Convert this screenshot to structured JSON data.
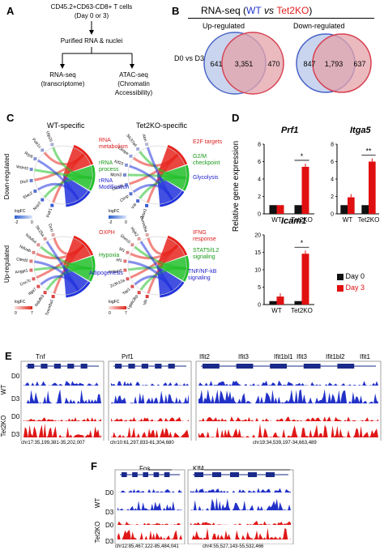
{
  "panel_labels": {
    "a": "A",
    "b": "B",
    "c": "C",
    "d": "D",
    "e": "E",
    "f": "F"
  },
  "panel_a": {
    "cells_line1": "CD45.2+CD63-CD8+  T cells",
    "cells_line2": "(Day 0 or 3)",
    "purified": "Purified RNA & nuclei",
    "rnaseq": "RNA-seq",
    "rnaseq_sub": "(transcriptome)",
    "atac": "ATAC-seq",
    "atac_sub1": "(Chromatin",
    "atac_sub2": "Accessibility)"
  },
  "panel_b": {
    "title_prefix": "RNA-seq (",
    "title_wt": "WT",
    "title_vs": " vs ",
    "title_ko": "Tet2KO",
    "title_suffix": ")",
    "up_label": "Up-regulated",
    "down_label": "Down-regulated",
    "row_label": "D0 vs D3",
    "up_counts": [
      "641",
      "3,351",
      "470"
    ],
    "down_counts": [
      "847",
      "1,793",
      "637"
    ],
    "colors": {
      "wt": "#2233cc",
      "ko": "#e02020"
    }
  },
  "panel_c": {
    "wt_title": "WT-specific",
    "ko_title": "Tet2KO-specific",
    "down_label": "Down-regulated",
    "up_label": "Up-regulated",
    "logfc": "logFC",
    "wt_down_genes": [
      "Polr1",
      "Nop2",
      "Elac2",
      "Dis3",
      "Wdr43",
      "Rrp9",
      "Polr1c",
      "Utp20"
    ],
    "wt_down_terms": [
      "RNA metabolism",
      "rRNA process",
      "rRNA Modification"
    ],
    "ko_down_genes": [
      "Atox1",
      "Vdr",
      "Clmp",
      "Cdc20",
      "Mcm3",
      "Kif23",
      "Cenpe",
      "Slc37a4",
      "Atm"
    ],
    "ko_down_terms": [
      "E2F targets",
      "G2/M checkpoint",
      "Glycolysis"
    ],
    "wt_up_genes": [
      "Timm8a1",
      "Ndufb3",
      "Itga7",
      "Cox7c",
      "Angpt1",
      "Cited2",
      "Nduab",
      "Ndufs4",
      "Slc25a",
      "Dcxr"
    ],
    "wt_up_terms": [
      "OXPH",
      "Hypoxia",
      "Adipogenesis"
    ],
    "ko_up_genes": [
      "Ido",
      "Lgals3bp",
      "Tap1",
      "Zc3h12a",
      "Tnfaip3",
      "Irf1",
      "Sf1",
      "Dnm1l",
      "Hipk2",
      "Dennd5a"
    ],
    "ko_up_terms": [
      "IFNG response",
      "STAT5/IL2 signaling",
      "TNF/NF-kB signaling"
    ],
    "down_scale": [
      "-2",
      "0"
    ],
    "up_scale": [
      "0",
      "7"
    ]
  },
  "panel_d": {
    "ylabel": "Relative gene expression",
    "legend": {
      "day0": "Day 0",
      "day3": "Day 3"
    },
    "colors": {
      "day0": "#111111",
      "day3": "#e01010"
    },
    "xcats": [
      "WT",
      "Tet2KO"
    ]
  },
  "chart_data": [
    {
      "type": "bar",
      "title": "Prf1",
      "categories": [
        "WT",
        "Tet2KO"
      ],
      "series": [
        {
          "name": "Day 0",
          "values": [
            1,
            1
          ]
        },
        {
          "name": "Day 3",
          "values": [
            1,
            5.4
          ]
        }
      ],
      "ylim": [
        0,
        8
      ],
      "yticks": [
        "0",
        "2",
        "4",
        "6",
        "8"
      ],
      "significance": "*"
    },
    {
      "type": "bar",
      "title": "Itga5",
      "categories": [
        "WT",
        "Tet2KO"
      ],
      "series": [
        {
          "name": "Day 0",
          "values": [
            1,
            1
          ]
        },
        {
          "name": "Day 3",
          "values": [
            1.9,
            6
          ]
        }
      ],
      "ylim": [
        0,
        8
      ],
      "yticks": [
        "0",
        "2",
        "4",
        "6",
        "8"
      ],
      "significance": "**"
    },
    {
      "type": "bar",
      "title": "Icam1",
      "categories": [
        "WT",
        "Tet2KO"
      ],
      "series": [
        {
          "name": "Day 0",
          "values": [
            1,
            1
          ]
        },
        {
          "name": "Day 3",
          "values": [
            2.3,
            14.6
          ]
        }
      ],
      "ylim": [
        0,
        20
      ],
      "yticks": [
        "0",
        "5",
        "10",
        "15",
        "20"
      ],
      "significance": "*"
    }
  ],
  "panel_e": {
    "genes_tnf": "Tnf",
    "genes_prf1": "Prf1",
    "genes_ifit": [
      "Ifit2",
      "Ifit3",
      "Ifit1bl1",
      "Ifit3",
      "Ifit1bl2",
      "Ifit1"
    ],
    "rows": [
      "D0",
      "D3",
      "D0",
      "D3"
    ],
    "groups": [
      "WT",
      "Tet2KO"
    ],
    "coords": [
      "chr17:35,199,381-35,202,007",
      "chr10:61,297,833-61,304,680",
      "chr19:34,539,197-34,663,489"
    ]
  },
  "panel_f": {
    "genes": [
      "Fos",
      "Klf4"
    ],
    "rows": [
      "D0",
      "D3",
      "D0",
      "D3"
    ],
    "groups": [
      "WT",
      "Tet2KO"
    ],
    "coords": [
      "chr12:85,467,122-85,484,041",
      "chr4:55,527,143-55,532,466"
    ]
  }
}
